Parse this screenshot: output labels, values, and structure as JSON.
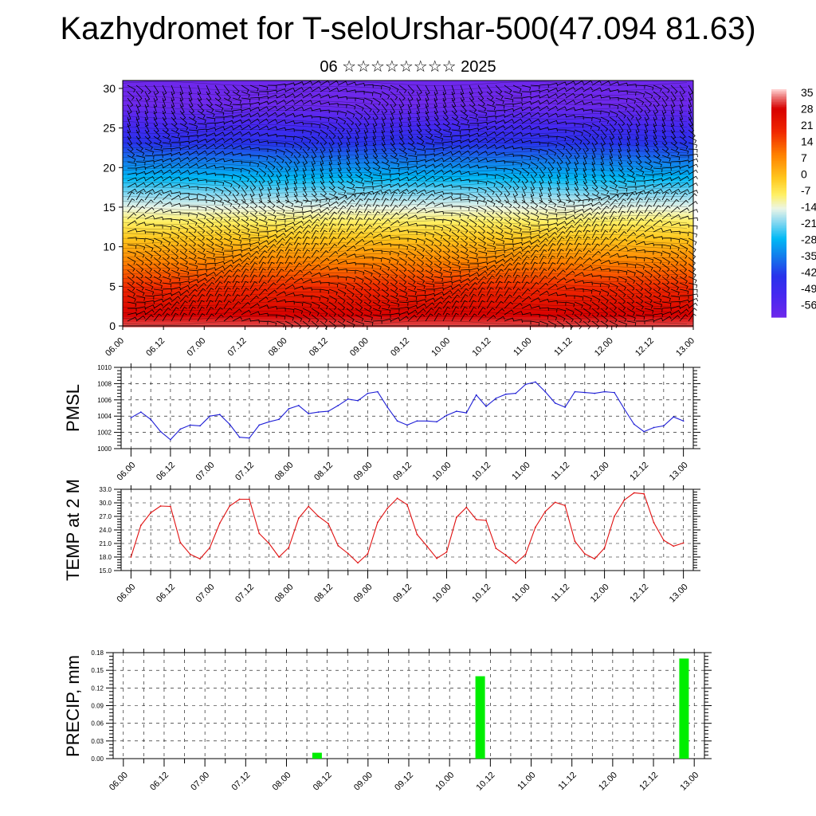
{
  "title": "Kazhydromet for T-seloUrshar-500(47.094 81.63)",
  "subtitle": "06 ☆☆☆☆☆☆☆☆ 2025",
  "colors": {
    "pmsl_line": "#1f1fd6",
    "temp_line": "#e01010",
    "precip_bar": "#00ee00"
  },
  "chart_data": [
    {
      "type": "heatmap",
      "name": "cross-section",
      "x_ticks": [
        "06.00",
        "06.12",
        "07.00",
        "07.12",
        "08.00",
        "08.12",
        "09.00",
        "09.12",
        "10.00",
        "10.12",
        "11.00",
        "11.12",
        "12.00",
        "12.12",
        "13.00"
      ],
      "y_ticks": [
        "0",
        "5",
        "10",
        "15",
        "20",
        "25",
        "30"
      ],
      "ylim": [
        0,
        31
      ],
      "colorbar_labels": [
        "35",
        "28",
        "21",
        "14",
        "7",
        "0",
        "-7",
        "-14",
        "-21",
        "-28",
        "-35",
        "-42",
        "-49",
        "-56"
      ],
      "colorbar_range": [
        -60,
        38
      ],
      "overlay": "wind barbs"
    },
    {
      "type": "line",
      "name": "pmsl",
      "ylabel": "PMSL",
      "ylim": [
        1000,
        1010
      ],
      "y_ticks": [
        "1010",
        "1008",
        "1006",
        "1004",
        "1002",
        "1000"
      ],
      "x_ticks": [
        "06.00",
        "06.12",
        "07.00",
        "07.12",
        "08.00",
        "08.12",
        "09.00",
        "09.12",
        "10.00",
        "10.12",
        "11.00",
        "11.12",
        "12.00",
        "12.12",
        "13.00"
      ],
      "xlim": [
        -0.125,
        7.125
      ],
      "x": [
        0,
        0.125,
        0.25,
        0.375,
        0.5,
        0.625,
        0.75,
        0.875,
        1,
        1.125,
        1.25,
        1.375,
        1.5,
        1.625,
        1.75,
        1.875,
        2,
        2.125,
        2.25,
        2.375,
        2.5,
        2.625,
        2.75,
        2.875,
        3,
        3.125,
        3.25,
        3.375,
        3.5,
        3.625,
        3.75,
        3.875,
        4,
        4.125,
        4.25,
        4.375,
        4.5,
        4.625,
        4.75,
        4.875,
        5,
        5.125,
        5.25,
        5.375,
        5.5,
        5.625,
        5.75,
        5.875,
        6,
        6.125,
        6.25,
        6.375,
        6.5,
        6.625,
        6.75,
        6.875,
        7
      ],
      "values": [
        1003.8,
        1004.5,
        1003.6,
        1002.1,
        1001.1,
        1002.4,
        1002.9,
        1002.8,
        1004.0,
        1004.2,
        1003.0,
        1001.4,
        1001.3,
        1002.9,
        1003.3,
        1003.6,
        1004.9,
        1005.3,
        1004.3,
        1004.5,
        1004.6,
        1005.3,
        1006.1,
        1005.9,
        1006.8,
        1007.0,
        1005.1,
        1003.4,
        1002.9,
        1003.4,
        1003.4,
        1003.3,
        1004.1,
        1004.6,
        1004.4,
        1006.6,
        1005.2,
        1006.2,
        1006.7,
        1006.8,
        1007.9,
        1008.2,
        1007.0,
        1005.6,
        1005.1,
        1007.0,
        1006.9,
        1006.8,
        1007.0,
        1006.9,
        1004.9,
        1003.0,
        1002.1,
        1002.6,
        1002.8,
        1003.9,
        1003.4
      ]
    },
    {
      "type": "line",
      "name": "temp",
      "ylabel": "TEMP at 2 M",
      "ylim": [
        15,
        33
      ],
      "y_ticks": [
        "33.0",
        "30.0",
        "27.0",
        "24.0",
        "21.0",
        "18.0",
        "15.0"
      ],
      "x_ticks": [
        "06.00",
        "06.12",
        "07.00",
        "07.12",
        "08.00",
        "08.12",
        "09.00",
        "09.12",
        "10.00",
        "10.12",
        "11.00",
        "11.12",
        "12.00",
        "12.12",
        "13.00"
      ],
      "xlim": [
        -0.125,
        7.125
      ],
      "x": [
        0,
        0.125,
        0.25,
        0.375,
        0.5,
        0.625,
        0.75,
        0.875,
        1,
        1.125,
        1.25,
        1.375,
        1.5,
        1.625,
        1.75,
        1.875,
        2,
        2.125,
        2.25,
        2.375,
        2.5,
        2.625,
        2.75,
        2.875,
        3,
        3.125,
        3.25,
        3.375,
        3.5,
        3.625,
        3.75,
        3.875,
        4,
        4.125,
        4.25,
        4.375,
        4.5,
        4.625,
        4.75,
        4.875,
        5,
        5.125,
        5.25,
        5.375,
        5.5,
        5.625,
        5.75,
        5.875,
        6,
        6.125,
        6.25,
        6.375,
        6.5,
        6.625,
        6.75,
        6.875,
        7
      ],
      "values": [
        18.0,
        25.0,
        27.8,
        29.3,
        29.2,
        21.2,
        18.6,
        17.6,
        20.1,
        25.5,
        29.3,
        30.8,
        30.8,
        23.2,
        21.0,
        18.0,
        20.1,
        26.6,
        29.2,
        27.0,
        25.4,
        20.5,
        18.8,
        16.7,
        18.7,
        25.7,
        28.8,
        31.0,
        29.6,
        23.0,
        20.4,
        17.7,
        19.1,
        26.8,
        29.0,
        26.3,
        26.1,
        19.9,
        18.4,
        16.6,
        18.6,
        24.6,
        28.1,
        30.1,
        29.4,
        21.5,
        18.7,
        17.6,
        20.0,
        27.0,
        30.6,
        32.2,
        32.0,
        25.6,
        21.7,
        20.4,
        21.1
      ]
    },
    {
      "type": "bar",
      "name": "precip",
      "ylabel": "PRECIP, mm",
      "ylim": [
        0,
        0.18
      ],
      "y_ticks": [
        "0.18",
        "0.15",
        "0.12",
        "0.09",
        "0.06",
        "0.03",
        "0.00"
      ],
      "x_ticks": [
        "06.00",
        "06.12",
        "07.00",
        "07.12",
        "08.00",
        "08.12",
        "09.00",
        "09.12",
        "10.00",
        "10.12",
        "11.00",
        "11.12",
        "12.00",
        "12.12",
        "13.00"
      ],
      "xlim": [
        -0.125,
        7.125
      ],
      "x": [
        2.375,
        4.375,
        6.875
      ],
      "values": [
        0.01,
        0.14,
        0.17
      ]
    }
  ]
}
